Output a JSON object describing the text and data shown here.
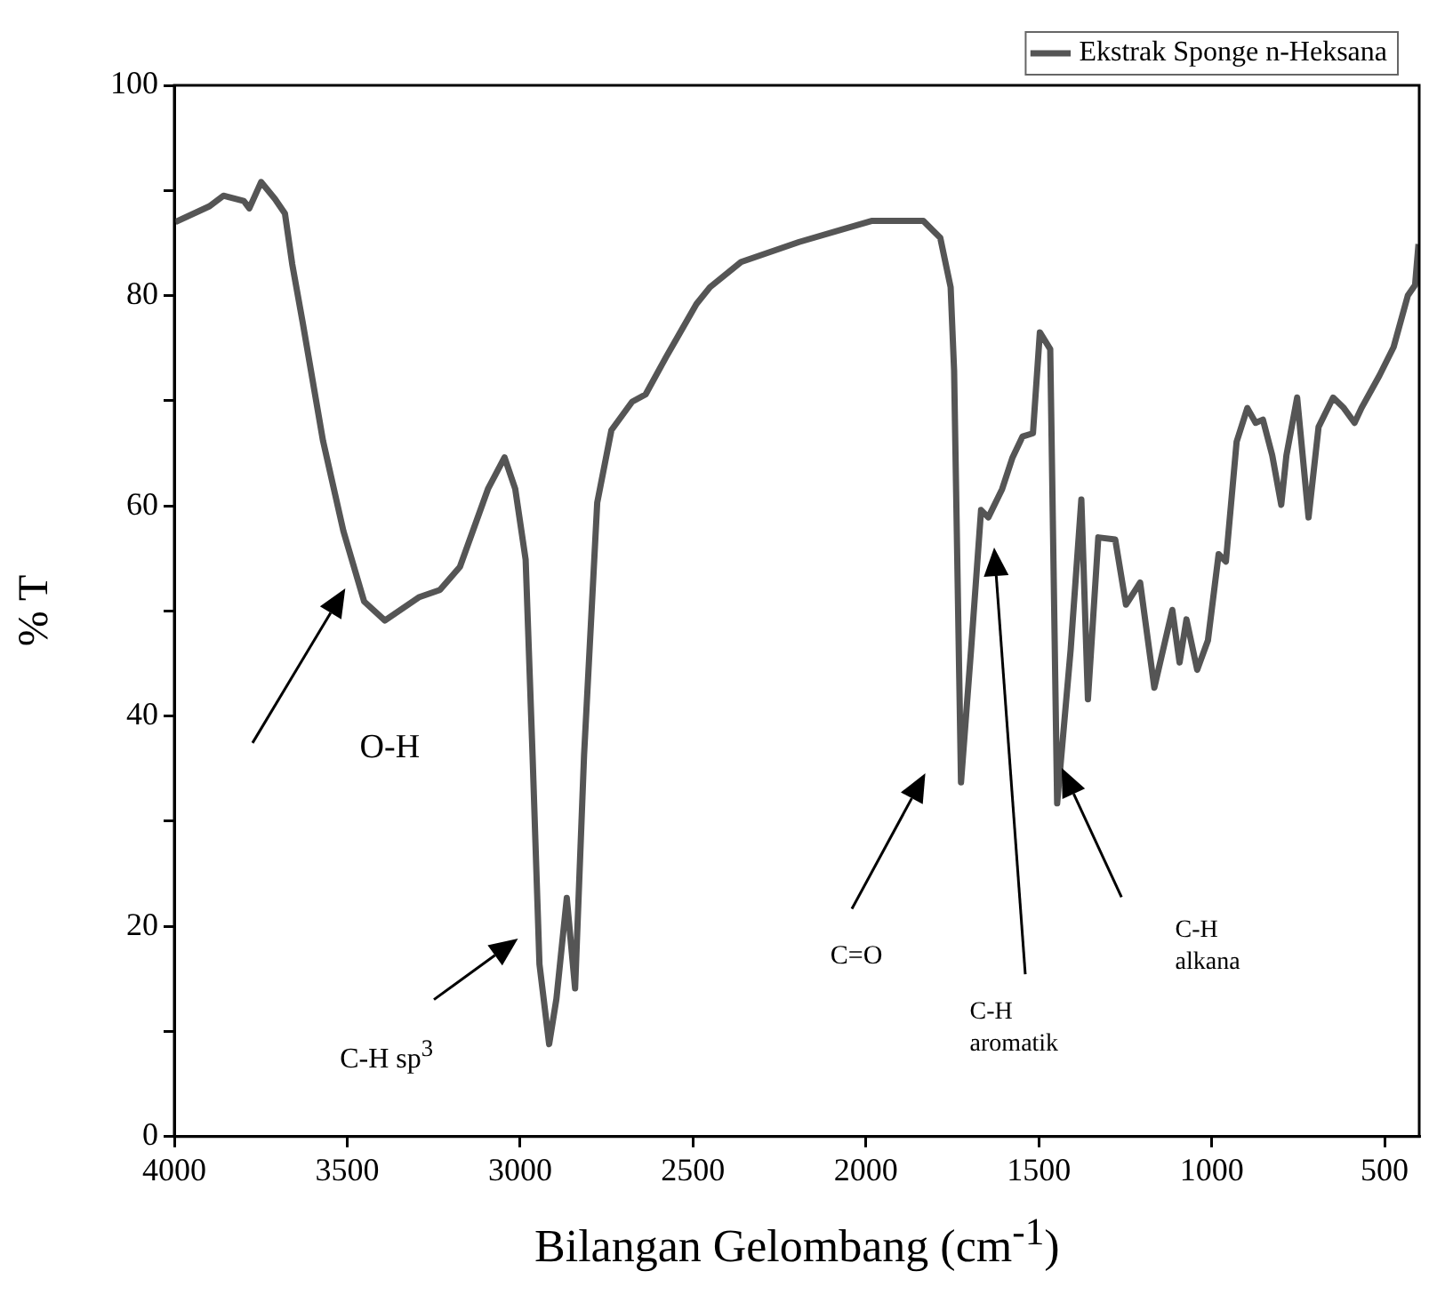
{
  "chart_data": {
    "type": "line",
    "xlabel": "Bilangan Gelombang (cm$^{-1}$)",
    "ylabel": "% T",
    "legend": "top right",
    "marker": "none",
    "line_style": "solid",
    "xlim": [
      4000,
      400
    ],
    "ylim": [
      0,
      100
    ],
    "xticks": [
      4000,
      3500,
      3000,
      2500,
      2000,
      1500,
      1000,
      500
    ],
    "yticks": [
      0,
      {
        "value": 10,
        "label": null
      },
      20,
      {
        "value": 30,
        "label": null
      },
      40,
      {
        "value": 50,
        "label": null
      },
      60,
      {
        "value": 70,
        "label": null
      },
      80,
      {
        "value": 90,
        "label": null
      },
      100
    ],
    "series": [
      {
        "name": "Ekstrak Sponge n-Heksana",
        "color": "#555555",
        "x": [
          3997,
          3898,
          3858,
          3799,
          3783,
          3749,
          3709,
          3680,
          3659,
          3629,
          3570,
          3511,
          3451,
          3391,
          3293,
          3232,
          3174,
          3093,
          3045,
          3014,
          2984,
          2964,
          2944,
          2916,
          2895,
          2865,
          2841,
          2815,
          2777,
          2736,
          2676,
          2637,
          2577,
          2490,
          2451,
          2361,
          2193,
          1984,
          1834,
          1785,
          1755,
          1745,
          1725,
          1696,
          1667,
          1646,
          1606,
          1576,
          1547,
          1517,
          1497,
          1467,
          1447,
          1408,
          1377,
          1358,
          1328,
          1279,
          1248,
          1207,
          1166,
          1114,
          1093,
          1073,
          1042,
          1011,
          980,
          959,
          928,
          897,
          873,
          852,
          825,
          799,
          784,
          753,
          720,
          691,
          649,
          618,
          587,
          567,
          515,
          474,
          433,
          412,
          402
        ],
        "values": [
          87.0,
          88.5,
          89.5,
          89.0,
          88.3,
          90.8,
          89.2,
          87.8,
          83.0,
          77.5,
          66.2,
          57.6,
          50.9,
          49.1,
          51.3,
          52.0,
          54.2,
          61.6,
          64.6,
          61.6,
          54.9,
          36.3,
          16.4,
          8.8,
          13.1,
          22.7,
          14.1,
          36.3,
          60.3,
          67.2,
          69.9,
          70.6,
          74.2,
          79.2,
          80.8,
          83.2,
          85.1,
          87.1,
          87.1,
          85.5,
          80.8,
          72.9,
          33.7,
          46.3,
          59.6,
          58.9,
          61.6,
          64.6,
          66.6,
          66.9,
          76.5,
          74.9,
          31.7,
          46.3,
          60.6,
          41.6,
          57.0,
          56.8,
          50.6,
          52.7,
          42.7,
          50.1,
          45.1,
          49.2,
          44.4,
          47.2,
          55.4,
          54.7,
          66.1,
          69.3,
          67.9,
          68.2,
          64.8,
          60.1,
          64.8,
          70.3,
          58.9,
          67.5,
          70.3,
          69.3,
          67.9,
          69.3,
          72.4,
          75.1,
          80.0,
          81.0,
          84.9
        ]
      }
    ],
    "annotations": [
      "O-H",
      "C-H sp$^{3}$",
      "C=O",
      "C-H aromatik",
      "C-H alkana"
    ]
  }
}
